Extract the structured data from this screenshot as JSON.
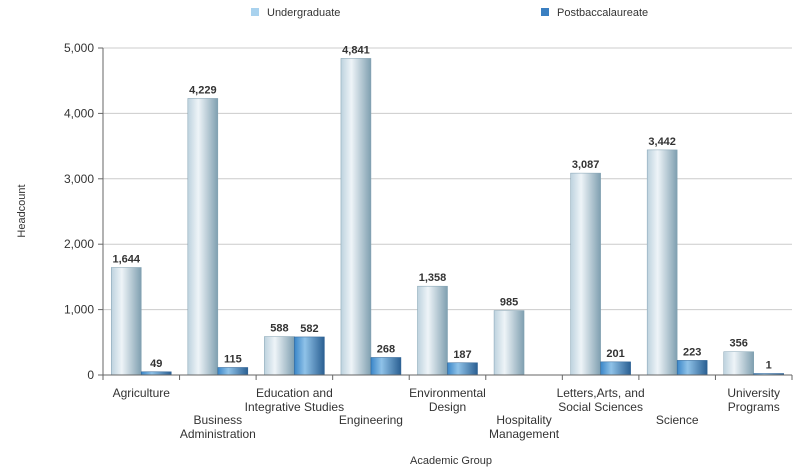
{
  "colors": {
    "undergrad_light": "#eef4f8",
    "undergrad_mid": "#bdd2de",
    "undergrad_dark": "#7f9fb0",
    "postbac_light": "#8fc2e8",
    "postbac_mid": "#3a86c8",
    "postbac_dark": "#2a5f92",
    "legend_undergrad": "#a9d2ee",
    "legend_postbac": "#3a7fc1",
    "grid": "#cccccc",
    "axis": "#666666"
  },
  "chart_data": {
    "type": "bar",
    "xlabel": "Academic Group",
    "ylabel": "Headcount",
    "ylim": [
      0,
      5000
    ],
    "yticks": [
      "0",
      "1,000",
      "2,000",
      "3,000",
      "4,000",
      "5,000"
    ],
    "ytick_values": [
      0,
      1000,
      2000,
      3000,
      4000,
      5000
    ],
    "legend_position": "top",
    "categories": [
      [
        "Agriculture"
      ],
      [
        "Business",
        "Administration"
      ],
      [
        "Education and",
        "Integrative Studies"
      ],
      [
        "Engineering"
      ],
      [
        "Environmental",
        "Design"
      ],
      [
        "Hospitality",
        "Management"
      ],
      [
        "Letters,Arts, and",
        "Social Sciences"
      ],
      [
        "Science"
      ],
      [
        "University",
        "Programs"
      ]
    ],
    "series": [
      {
        "name": "Undergraduate",
        "values": [
          1644,
          4229,
          588,
          4841,
          1358,
          985,
          3087,
          3442,
          356
        ],
        "labels": [
          "1,644",
          "4,229",
          "588",
          "4,841",
          "1,358",
          "985",
          "3,087",
          "3,442",
          "356"
        ]
      },
      {
        "name": "Postbaccalaureate",
        "values": [
          49,
          115,
          582,
          268,
          187,
          0,
          201,
          223,
          1
        ],
        "labels": [
          "49",
          "115",
          "582",
          "268",
          "187",
          "",
          "201",
          "223",
          "1"
        ]
      }
    ]
  }
}
